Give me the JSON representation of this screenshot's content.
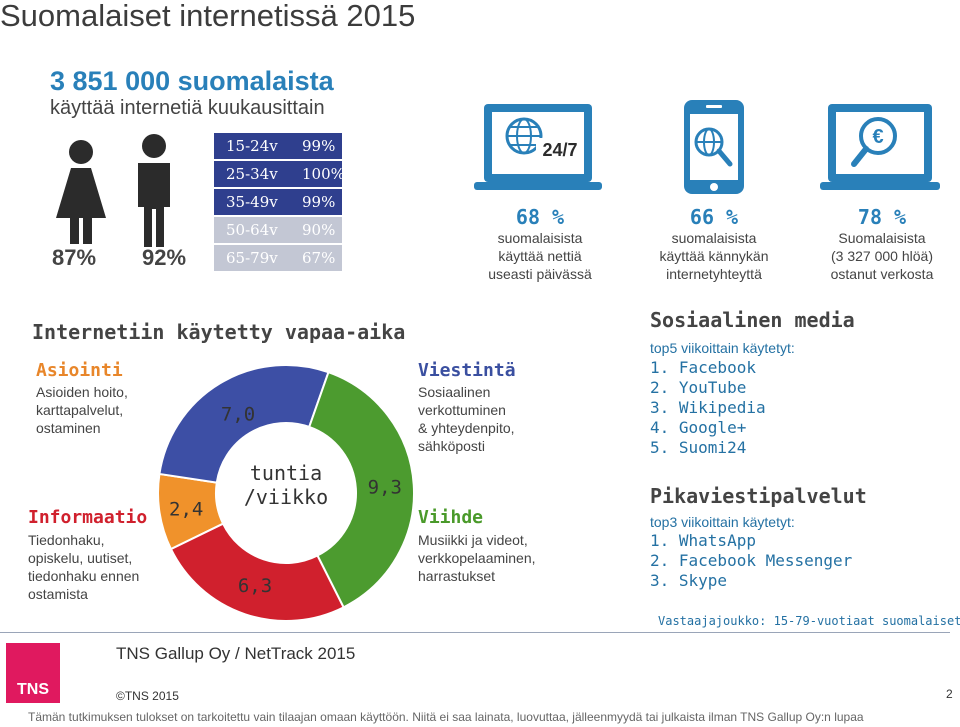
{
  "title": "Suomalaiset internetissä 2015",
  "users": {
    "count": "3 851 000 suomalaista",
    "subtitle": "käyttää internetiä kuukausittain",
    "female_pct": "87%",
    "male_pct": "92%"
  },
  "age_groups": [
    {
      "age": "15-24v",
      "pct": "99%"
    },
    {
      "age": "25-34v",
      "pct": "100%"
    },
    {
      "age": "35-49v",
      "pct": "99%"
    },
    {
      "age": "50-64v",
      "pct": "90%"
    },
    {
      "age": "65-79v",
      "pct": "67%"
    }
  ],
  "stats": [
    {
      "icon": "laptop-24-7-icon",
      "badge": "24/7",
      "pct": "68 %",
      "line1": "suomalaisista",
      "line2": "käyttää nettiä",
      "line3": "useasti päivässä"
    },
    {
      "icon": "phone-globe-icon",
      "pct": "66 %",
      "line1": "suomalaisista",
      "line2": "käyttää kännykän",
      "line3": "internetyhteyttä"
    },
    {
      "icon": "laptop-euro-search-icon",
      "pct": "78 %",
      "line1": "Suomalaisista",
      "line2": "(3 327 000 hlöä)",
      "line3": "ostanut verkosta"
    }
  ],
  "leisure": {
    "title": "Internetiin käytetty vapaa-aika",
    "center_label_1": "tuntia",
    "center_label_2": "/viikko",
    "categories": {
      "asiointi": {
        "title": "Asiointi",
        "desc": [
          "Asioiden hoito,",
          "karttapalvelut,",
          "ostaminen"
        ],
        "color": "#e8862a"
      },
      "informaatio": {
        "title": "Informaatio",
        "desc": [
          "Tiedonhaku,",
          "opiskelu, uutiset,",
          "tiedonhaku ennen",
          "ostamista"
        ],
        "color": "#d0202d"
      },
      "viestinta": {
        "title": "Viestintä",
        "desc": [
          "Sosiaalinen",
          "verkottuminen",
          "& yhteydenpito,",
          "sähköposti"
        ],
        "color": "#3a4fa0"
      },
      "viihde": {
        "title": "Viihde",
        "desc": [
          "Musiikki ja videot,",
          "verkkopelaaminen,",
          "harrastukset"
        ],
        "color": "#4a9a2a"
      }
    }
  },
  "chart_data": {
    "type": "pie",
    "donut": true,
    "categories": [
      "Asiointi",
      "Viestintä",
      "Viihde",
      "Informaatio"
    ],
    "values": [
      2.4,
      7.0,
      9.3,
      6.3
    ],
    "value_labels": [
      "2,4",
      "7,0",
      "9,3",
      "6,3"
    ],
    "colors": [
      "#f0922b",
      "#3d4fa5",
      "#4c9b2f",
      "#d0202d"
    ]
  },
  "social": {
    "title": "Sosiaalinen media",
    "intro": "top5 viikoittain käytetyt:",
    "items": [
      "1.  Facebook",
      "2.  YouTube",
      "3.  Wikipedia",
      "4.  Google+",
      "5.  Suomi24"
    ]
  },
  "messaging": {
    "title": "Pikaviestipalvelut",
    "intro": "top3 viikoittain käytetyt:",
    "items": [
      "1.  WhatsApp",
      "2.  Facebook Messenger",
      "3.  Skype"
    ]
  },
  "respondents": "Vastaajajoukko: 15-79-vuotiaat suomalaiset.",
  "source": "TNS Gallup Oy / NetTrack 2015",
  "logo_text": "TNS",
  "copyright": "©TNS 2015",
  "page_number": "2",
  "disclaimer": "Tämän tutkimuksen tulokset on tarkoitettu vain tilaajan omaan käyttöön. Niitä ei saa lainata, luovuttaa, jälleenmyydä tai julkaista ilman TNS Gallup Oy:n lupaa"
}
